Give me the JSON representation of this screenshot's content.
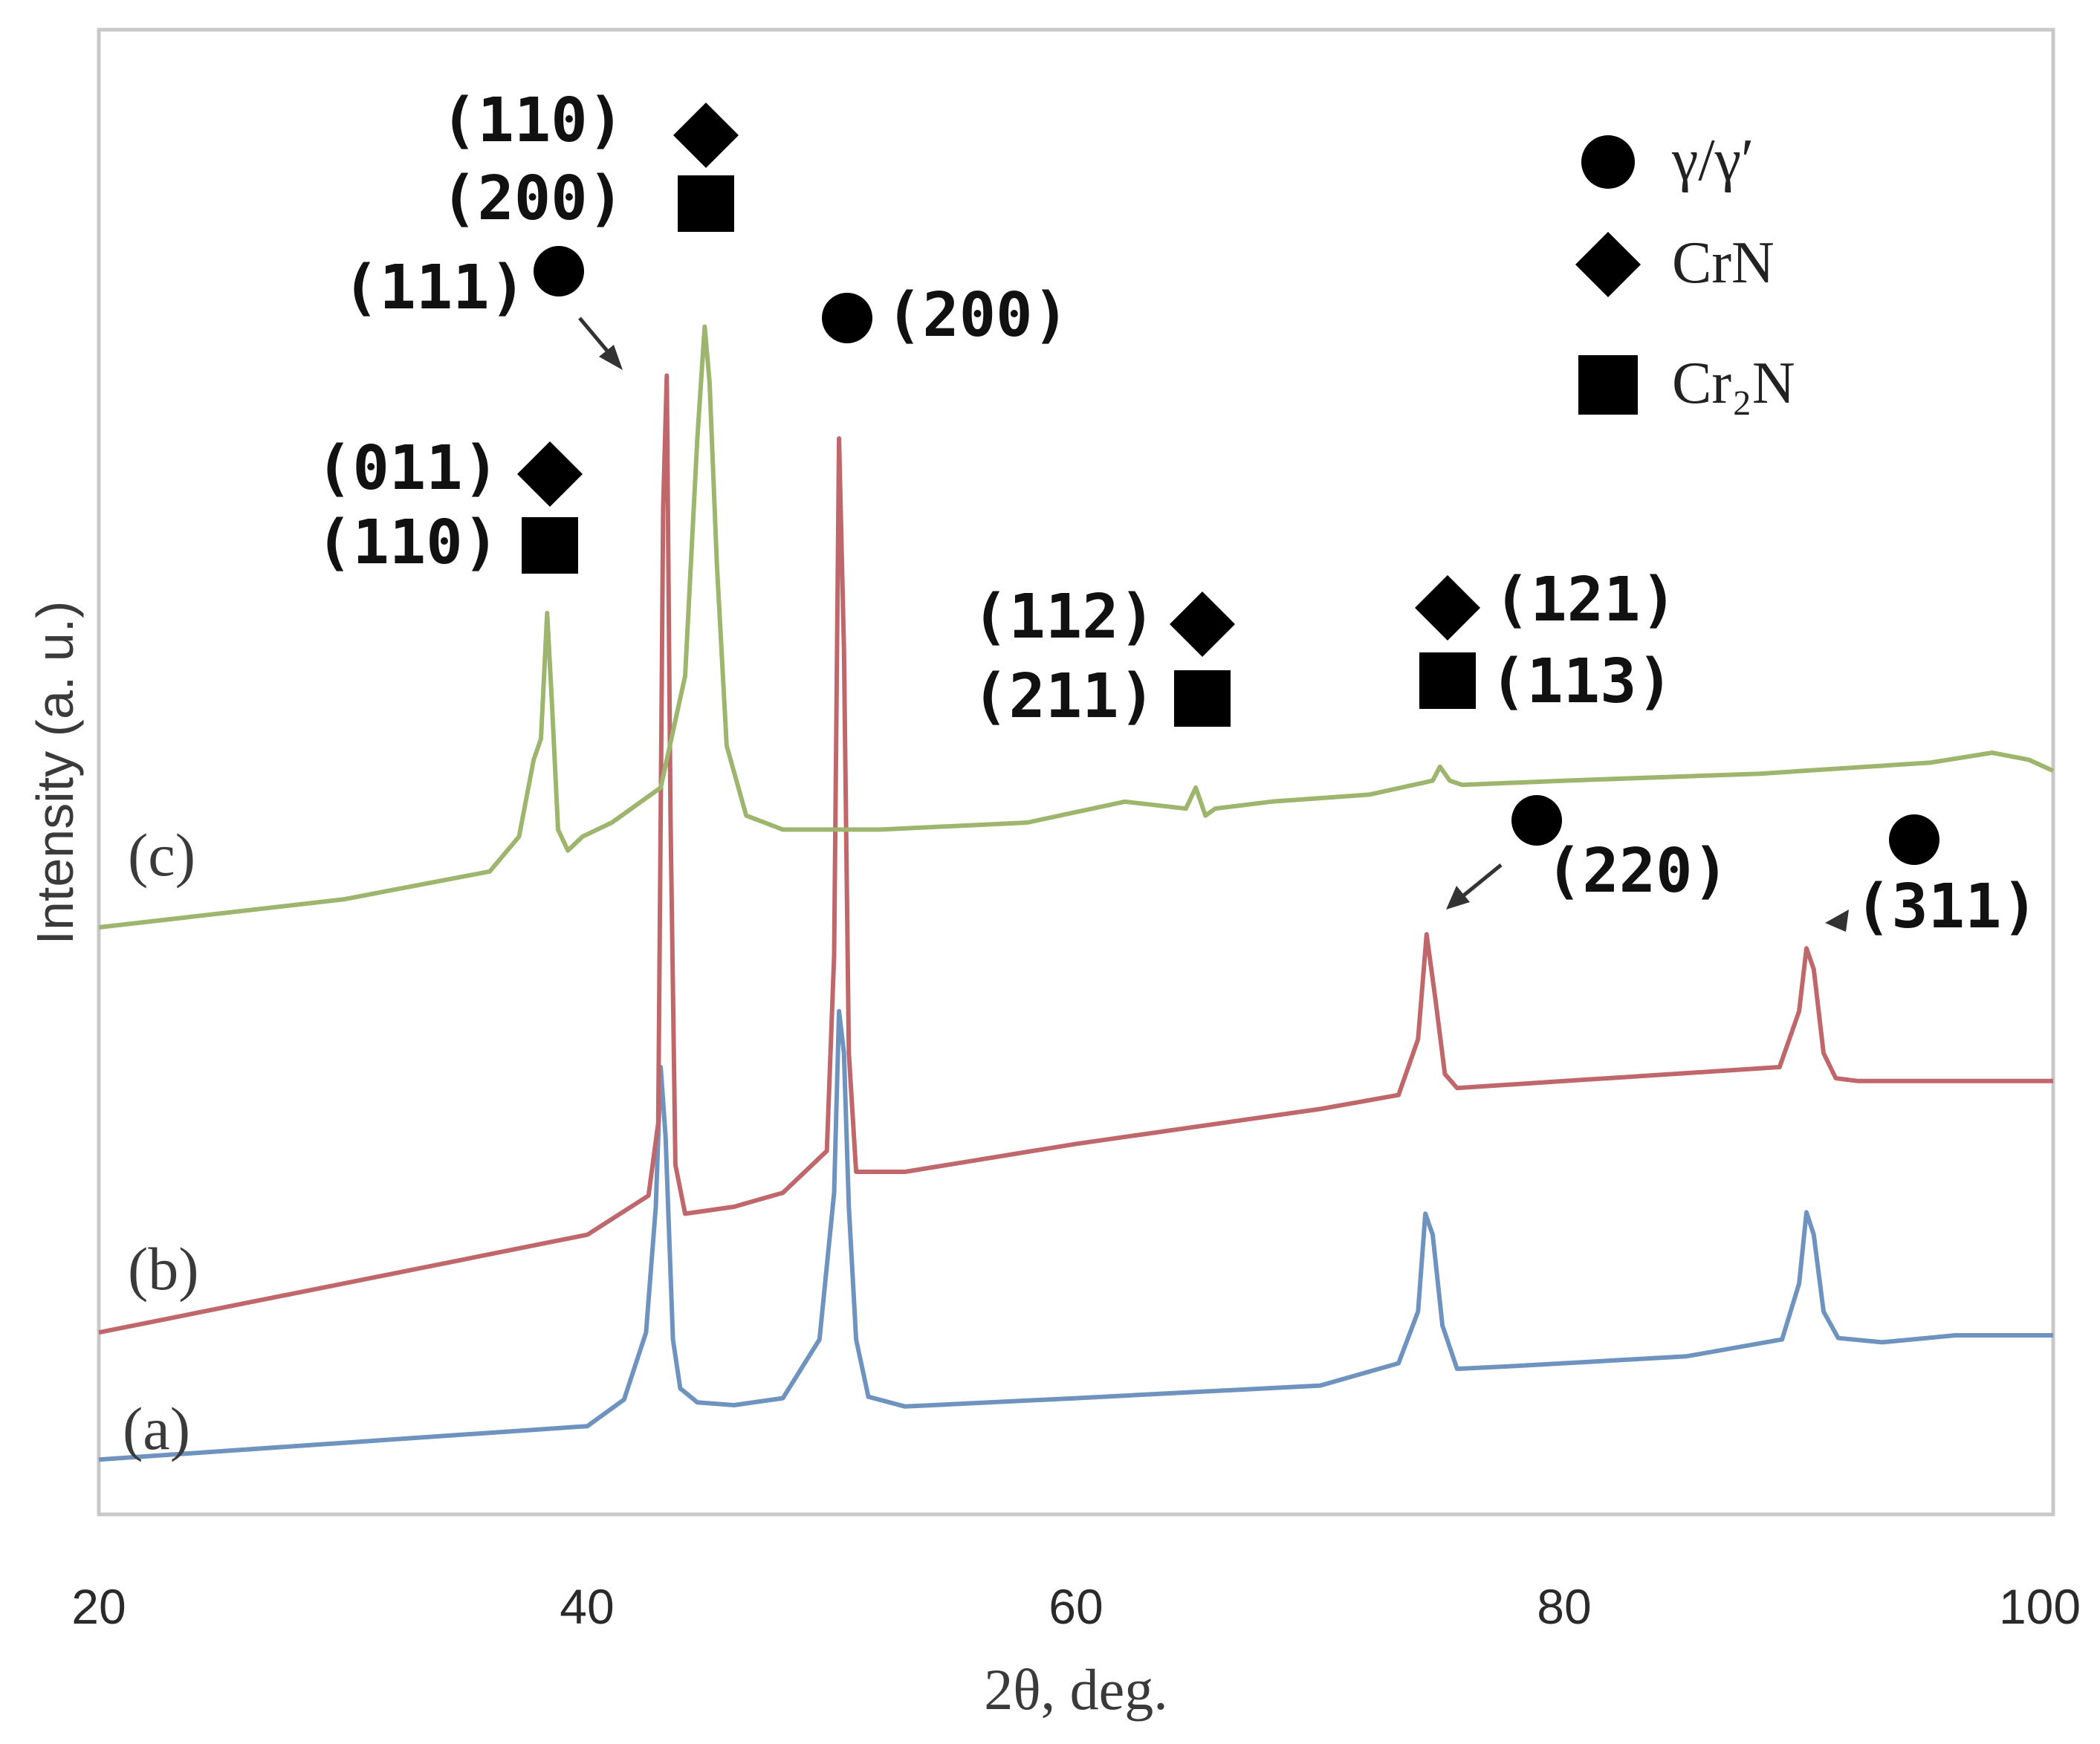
{
  "chart_data": {
    "type": "line",
    "title": "",
    "xlabel": "2θ, deg.",
    "ylabel": "Intensity (a. u.)",
    "xlim": [
      20,
      100
    ],
    "ylim": [
      0,
      100
    ],
    "xticks": [
      "20",
      "40",
      "60",
      "80",
      "100"
    ],
    "grid": false,
    "legend_position": "top-right",
    "legend": [
      {
        "marker": "circle",
        "label": "γ/γ′"
      },
      {
        "marker": "diamond",
        "label": "CrN"
      },
      {
        "marker": "square",
        "label": "Cr₂N"
      }
    ],
    "series": [
      {
        "name": "(a)",
        "color": "#6f93bf",
        "x": [
          20,
          30,
          40,
          41.5,
          42.4,
          42.8,
          43.0,
          43.2,
          43.5,
          43.8,
          44.5,
          46,
          48,
          49.5,
          50.1,
          50.3,
          50.5,
          50.7,
          51.0,
          51.5,
          53,
          60,
          70,
          73.2,
          74.0,
          74.3,
          74.6,
          75.0,
          75.6,
          78,
          85,
          88.9,
          89.6,
          89.9,
          90.2,
          90.6,
          91.2,
          93,
          96,
          100
        ],
        "y": [
          1.9,
          3.1,
          4.3,
          6.2,
          11.0,
          20.0,
          30.0,
          25.0,
          10.5,
          7.0,
          6.0,
          5.8,
          6.3,
          10.5,
          21.0,
          34.0,
          31.0,
          20.0,
          10.5,
          6.4,
          5.7,
          6.3,
          7.2,
          8.8,
          12.5,
          19.5,
          18.0,
          11.5,
          8.4,
          8.6,
          9.3,
          10.5,
          14.5,
          19.6,
          18.0,
          12.5,
          10.6,
          10.3,
          10.8,
          10.8
        ]
      },
      {
        "name": "(b)",
        "color": "#c0676b",
        "x": [
          20,
          30,
          40,
          42.5,
          42.9,
          43.1,
          43.25,
          43.4,
          43.6,
          44.0,
          46,
          48,
          49.8,
          50.1,
          50.3,
          50.5,
          50.7,
          51.0,
          53,
          60,
          70,
          73.2,
          74.0,
          74.35,
          74.7,
          75.1,
          75.6,
          80,
          88.8,
          89.6,
          89.9,
          90.2,
          90.6,
          91.1,
          92,
          95,
          100
        ],
        "y": [
          11.0,
          14.5,
          18.0,
          20.8,
          26.0,
          70.0,
          79.5,
          48.0,
          23.0,
          19.5,
          20.0,
          21.0,
          24.0,
          38.0,
          75.0,
          60.0,
          31.0,
          22.5,
          22.5,
          24.5,
          27.0,
          28.0,
          32.0,
          39.5,
          35.0,
          29.5,
          28.5,
          29.0,
          30.0,
          34.0,
          38.5,
          37.0,
          31.0,
          29.2,
          29.0,
          29.0,
          29.0
        ]
      },
      {
        "name": "(c)",
        "color": "#9db56c",
        "x": [
          20,
          30,
          36,
          37.2,
          37.8,
          38.1,
          38.35,
          38.55,
          38.8,
          39.2,
          39.8,
          41,
          43,
          44,
          44.5,
          44.8,
          45.0,
          45.3,
          45.7,
          46.5,
          48,
          52,
          58,
          62,
          64.5,
          64.9,
          65.1,
          65.3,
          65.7,
          68,
          72,
          74.6,
          74.9,
          75.3,
          75.8,
          80,
          88,
          95,
          97.5,
          99,
          100
        ],
        "y": [
          40.0,
          42.0,
          44.0,
          46.5,
          52.0,
          53.5,
          62.5,
          56.0,
          47.0,
          45.5,
          46.5,
          47.5,
          50.0,
          58.0,
          75.0,
          83.0,
          79.0,
          66.0,
          53.0,
          48.0,
          47.0,
          47.0,
          47.5,
          49.0,
          48.5,
          50.0,
          49.0,
          48.0,
          48.5,
          49.0,
          49.5,
          50.5,
          51.5,
          50.5,
          50.2,
          50.5,
          51.0,
          51.8,
          52.5,
          52.0,
          51.2
        ]
      }
    ],
    "annotations": [
      {
        "id": "c-low-peak",
        "x": 38.4,
        "y": 62.5,
        "lines": [
          {
            "text": "(011)",
            "marker": "diamond"
          },
          {
            "text": "(110)",
            "marker": "square"
          }
        ]
      },
      {
        "id": "c-high-peak",
        "x": 44.8,
        "y": 83.0,
        "lines": [
          {
            "text": "(110)",
            "marker": "diamond"
          },
          {
            "text": "(200)",
            "marker": "square"
          }
        ]
      },
      {
        "id": "c-mid-peak",
        "x": 64.9,
        "y": 50.0,
        "lines": [
          {
            "text": "(112)",
            "marker": "diamond"
          },
          {
            "text": "(211)",
            "marker": "square"
          }
        ]
      },
      {
        "id": "c-75-peak",
        "x": 74.9,
        "y": 51.5,
        "lines": [
          {
            "text": "(121)",
            "marker": "diamond"
          },
          {
            "text": "(113)",
            "marker": "square"
          }
        ]
      },
      {
        "id": "gamma-111",
        "x": 43.25,
        "y": 79.5,
        "lines": [
          {
            "text": "(111)",
            "marker": "circle"
          }
        ]
      },
      {
        "id": "gamma-200",
        "x": 50.3,
        "y": 75.0,
        "lines": [
          {
            "text": "(200)",
            "marker": "circle"
          }
        ]
      },
      {
        "id": "gamma-220",
        "x": 74.35,
        "y": 39.5,
        "lines": [
          {
            "text": "(220)",
            "marker": "circle"
          }
        ]
      },
      {
        "id": "gamma-311",
        "x": 89.9,
        "y": 38.5,
        "lines": [
          {
            "text": "(311)",
            "marker": "circle"
          }
        ]
      }
    ]
  }
}
